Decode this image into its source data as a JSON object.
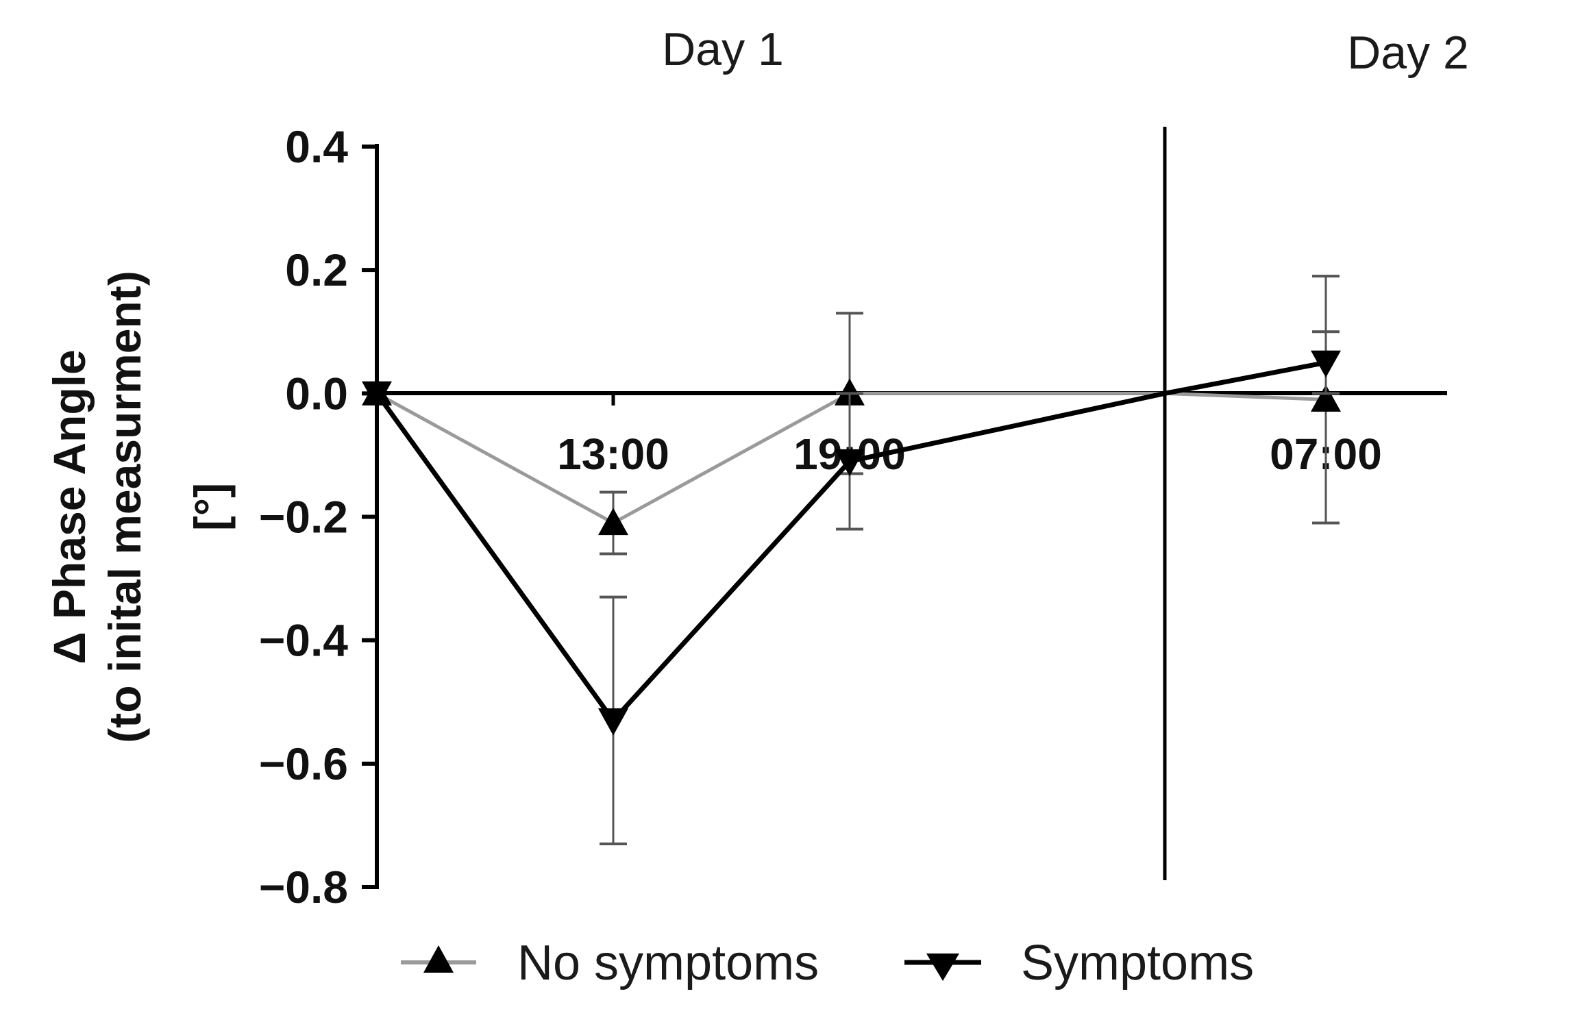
{
  "chart_data": {
    "type": "line",
    "day_labels": [
      "Day 1",
      "Day 2"
    ],
    "x": [
      "",
      "13:00",
      "19:00",
      "",
      "07:00"
    ],
    "x_tick_labels": [
      "13:00",
      "19:00",
      "07:00"
    ],
    "ylabel": [
      "Δ Phase Angle",
      "(to inital measurment)",
      "[°]"
    ],
    "ylim": [
      -0.8,
      0.4
    ],
    "yticks": [
      "0.4",
      "0.2",
      "0.0",
      "−0.2",
      "−0.4",
      "−0.6",
      "−0.8"
    ],
    "ytick_values": [
      0.4,
      0.2,
      0.0,
      -0.2,
      -0.4,
      -0.6,
      -0.8
    ],
    "legend_position": "bottom",
    "series": [
      {
        "name": "No symptoms",
        "marker": "triangle-up",
        "color": "#9a9a9a",
        "values": [
          0.0,
          -0.21,
          0.0,
          0.0,
          -0.01
        ],
        "error": [
          0,
          0.05,
          0.13,
          0,
          0.2
        ]
      },
      {
        "name": "Symptoms",
        "marker": "triangle-down",
        "color": "#000000",
        "values": [
          0.0,
          -0.53,
          -0.11,
          0.0,
          0.05
        ],
        "error": [
          0,
          0.2,
          0.11,
          0,
          0.05
        ]
      }
    ]
  }
}
